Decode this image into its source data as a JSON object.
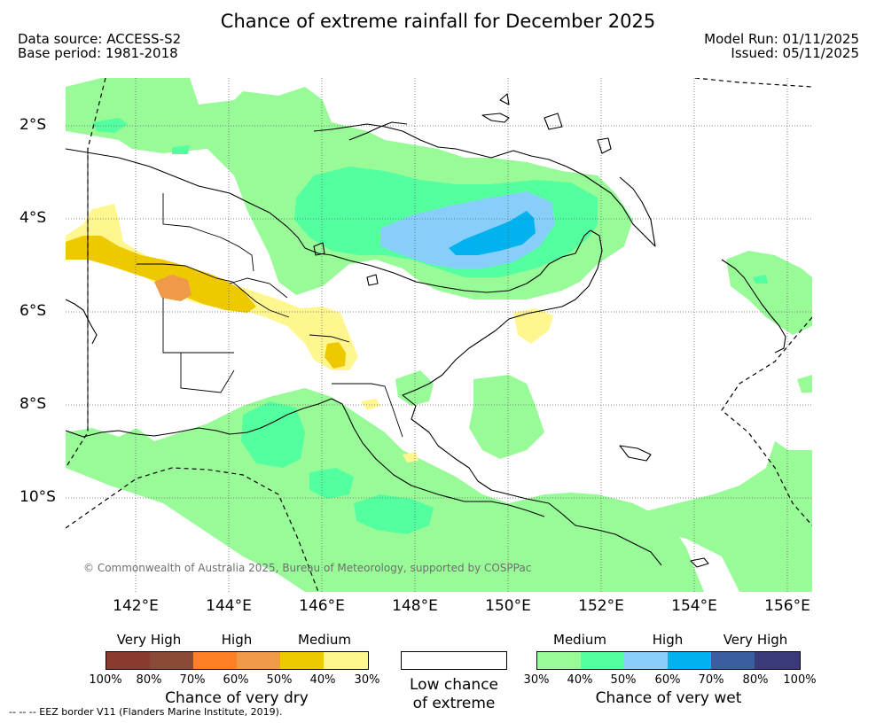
{
  "title": "Chance of extreme rainfall for December 2025",
  "header": {
    "data_source": "Data source: ACCESS-S2",
    "base_period": "Base period: 1981-2018",
    "model_run": "Model Run: 01/11/2025",
    "issued": "Issued: 05/11/2025"
  },
  "map": {
    "lat_labels": [
      "2°S",
      "4°S",
      "6°S",
      "8°S",
      "10°S"
    ],
    "lon_labels": [
      "142°E",
      "144°E",
      "146°E",
      "148°E",
      "150°E",
      "152°E",
      "154°E",
      "156°E"
    ],
    "credit": "© Commonwealth of Australia 2025, Bureau of Meteorology, supported by COSPPac",
    "land_color": "#ffffff",
    "ocean_color": "#ffffff"
  },
  "legend": {
    "dry": {
      "categories": [
        "Very High",
        "High",
        "Medium"
      ],
      "colors": [
        "#8b3a2f",
        "#8b4a38",
        "#ff7f24",
        "#ee9a49",
        "#eec900",
        "#fff68f"
      ],
      "ticks": [
        "100%",
        "80%",
        "70%",
        "60%",
        "50%",
        "40%",
        "30%"
      ],
      "label": "Chance of very dry"
    },
    "low": {
      "label_line1": "Low chance",
      "label_line2": "of extreme",
      "color": "#ffffff"
    },
    "wet": {
      "categories": [
        "Medium",
        "High",
        "Very High"
      ],
      "colors": [
        "#98fb98",
        "#54ff9f",
        "#87cefa",
        "#00b2ee",
        "#3a5f9e",
        "#3a3a7a"
      ],
      "ticks": [
        "30%",
        "40%",
        "50%",
        "60%",
        "70%",
        "80%",
        "100%"
      ],
      "label": "Chance of very wet"
    }
  },
  "footnote": "--  --  -- EEZ border V11 (Flanders Marine Institute, 2019)."
}
